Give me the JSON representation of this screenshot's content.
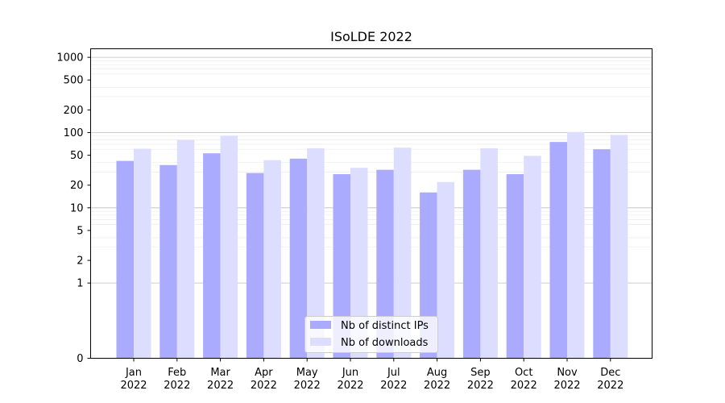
{
  "chart_data": {
    "type": "bar",
    "title": "ISoLDE 2022",
    "xlabel": "",
    "ylabel": "",
    "y_scale": "symlog",
    "y_ticks": [
      0,
      1,
      2,
      5,
      10,
      20,
      50,
      100,
      200,
      500,
      1000
    ],
    "y_tick_labels": [
      "0",
      "1",
      "2",
      "5",
      "10",
      "20",
      "50",
      "100",
      "200",
      "500",
      "1000"
    ],
    "ylim": [
      0,
      1300
    ],
    "grid": true,
    "legend_position": "bottom-center",
    "categories": [
      "Jan\n2022",
      "Feb\n2022",
      "Mar\n2022",
      "Apr\n2022",
      "May\n2022",
      "Jun\n2022",
      "Jul\n2022",
      "Aug\n2022",
      "Sep\n2022",
      "Oct\n2022",
      "Nov\n2022",
      "Dec\n2022"
    ],
    "series": [
      {
        "name": "Nb of distinct IPs",
        "color": "#aaaaff",
        "values": [
          42,
          37,
          53,
          29,
          45,
          28,
          32,
          16,
          32,
          28,
          75,
          60
        ]
      },
      {
        "name": "Nb of downloads",
        "color": "#ddddff",
        "values": [
          61,
          80,
          91,
          43,
          62,
          34,
          63,
          22,
          62,
          49,
          102,
          93
        ]
      }
    ]
  }
}
